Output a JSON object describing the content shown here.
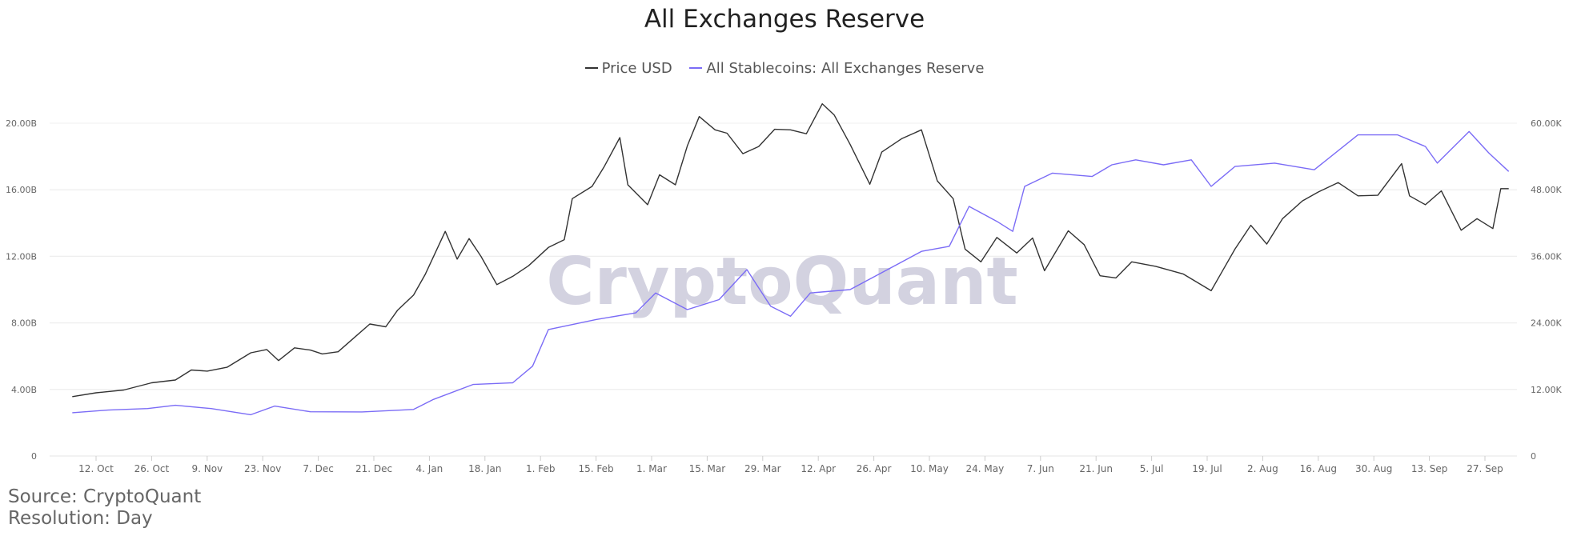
{
  "chart_data": {
    "type": "line",
    "title": "All Exchanges Reserve",
    "watermark": "CryptoQuant",
    "legend_placement": "top-center",
    "grid": true,
    "x_start": "2020-10-06",
    "x_end": "2021-10-03",
    "xticks": [
      "12. Oct",
      "26. Oct",
      "9. Nov",
      "23. Nov",
      "7. Dec",
      "21. Dec",
      "4. Jan",
      "18. Jan",
      "1. Feb",
      "15. Feb",
      "1. Mar",
      "15. Mar",
      "29. Mar",
      "12. Apr",
      "26. Apr",
      "10. May",
      "24. May",
      "7. Jun",
      "21. Jun",
      "5. Jul",
      "19. Jul",
      "2. Aug",
      "16. Aug",
      "30. Aug",
      "13. Sep",
      "27. Sep"
    ],
    "y_left": {
      "min": 0,
      "max": 20000000000,
      "ticks": [
        "0",
        "4.00B",
        "8.00B",
        "12.00B",
        "16.00B",
        "20.00B"
      ]
    },
    "y_right": {
      "min": 0,
      "max": 60000,
      "ticks": [
        "0",
        "12.00K",
        "24.00K",
        "36.00K",
        "48.00K",
        "60.00K"
      ]
    },
    "series": [
      {
        "name": "Price USD",
        "axis": "right",
        "color": "#333333",
        "points": [
          [
            "2020-10-06",
            10700
          ],
          [
            "2020-10-12",
            11400
          ],
          [
            "2020-10-19",
            11900
          ],
          [
            "2020-10-26",
            13200
          ],
          [
            "2020-11-01",
            13700
          ],
          [
            "2020-11-05",
            15500
          ],
          [
            "2020-11-09",
            15300
          ],
          [
            "2020-11-14",
            16000
          ],
          [
            "2020-11-20",
            18600
          ],
          [
            "2020-11-24",
            19200
          ],
          [
            "2020-11-27",
            17200
          ],
          [
            "2020-12-01",
            19500
          ],
          [
            "2020-12-05",
            19100
          ],
          [
            "2020-12-08",
            18400
          ],
          [
            "2020-12-12",
            18800
          ],
          [
            "2020-12-16",
            21300
          ],
          [
            "2020-12-20",
            23800
          ],
          [
            "2020-12-24",
            23300
          ],
          [
            "2020-12-27",
            26300
          ],
          [
            "2020-12-31",
            29000
          ],
          [
            "2021-01-03",
            32800
          ],
          [
            "2021-01-08",
            40500
          ],
          [
            "2021-01-11",
            35500
          ],
          [
            "2021-01-14",
            39200
          ],
          [
            "2021-01-17",
            36000
          ],
          [
            "2021-01-21",
            30900
          ],
          [
            "2021-01-25",
            32400
          ],
          [
            "2021-01-29",
            34300
          ],
          [
            "2021-02-03",
            37600
          ],
          [
            "2021-02-07",
            39000
          ],
          [
            "2021-02-09",
            46400
          ],
          [
            "2021-02-14",
            48600
          ],
          [
            "2021-02-17",
            52100
          ],
          [
            "2021-02-21",
            57400
          ],
          [
            "2021-02-23",
            48900
          ],
          [
            "2021-02-28",
            45300
          ],
          [
            "2021-03-03",
            50700
          ],
          [
            "2021-03-07",
            48900
          ],
          [
            "2021-03-10",
            55900
          ],
          [
            "2021-03-13",
            61200
          ],
          [
            "2021-03-17",
            58800
          ],
          [
            "2021-03-20",
            58200
          ],
          [
            "2021-03-24",
            54500
          ],
          [
            "2021-03-28",
            55800
          ],
          [
            "2021-04-01",
            58900
          ],
          [
            "2021-04-05",
            58800
          ],
          [
            "2021-04-09",
            58100
          ],
          [
            "2021-04-13",
            63500
          ],
          [
            "2021-04-16",
            61500
          ],
          [
            "2021-04-20",
            56200
          ],
          [
            "2021-04-25",
            49000
          ],
          [
            "2021-04-28",
            54800
          ],
          [
            "2021-05-03",
            57200
          ],
          [
            "2021-05-08",
            58800
          ],
          [
            "2021-05-12",
            49600
          ],
          [
            "2021-05-16",
            46400
          ],
          [
            "2021-05-19",
            37300
          ],
          [
            "2021-05-23",
            35000
          ],
          [
            "2021-05-27",
            39400
          ],
          [
            "2021-06-01",
            36600
          ],
          [
            "2021-06-05",
            39300
          ],
          [
            "2021-06-08",
            33400
          ],
          [
            "2021-06-14",
            40600
          ],
          [
            "2021-06-18",
            38100
          ],
          [
            "2021-06-22",
            32500
          ],
          [
            "2021-06-26",
            32100
          ],
          [
            "2021-06-30",
            35000
          ],
          [
            "2021-07-06",
            34200
          ],
          [
            "2021-07-13",
            32800
          ],
          [
            "2021-07-20",
            29800
          ],
          [
            "2021-07-26",
            37300
          ],
          [
            "2021-07-30",
            41600
          ],
          [
            "2021-08-03",
            38200
          ],
          [
            "2021-08-07",
            42800
          ],
          [
            "2021-08-12",
            46000
          ],
          [
            "2021-08-16",
            47600
          ],
          [
            "2021-08-21",
            49300
          ],
          [
            "2021-08-26",
            46900
          ],
          [
            "2021-08-31",
            47000
          ],
          [
            "2021-09-06",
            52700
          ],
          [
            "2021-09-08",
            46900
          ],
          [
            "2021-09-12",
            45300
          ],
          [
            "2021-09-16",
            47800
          ],
          [
            "2021-09-21",
            40700
          ],
          [
            "2021-09-25",
            42800
          ],
          [
            "2021-09-29",
            41000
          ],
          [
            "2021-10-01",
            48200
          ],
          [
            "2021-10-03",
            48200
          ]
        ]
      },
      {
        "name": "All Stablecoins: All Exchanges Reserve",
        "axis": "left",
        "color": "#7b6cf6",
        "points": [
          [
            "2020-10-06",
            2600000000
          ],
          [
            "2020-10-15",
            2760000000
          ],
          [
            "2020-10-25",
            2850000000
          ],
          [
            "2020-11-01",
            3050000000
          ],
          [
            "2020-11-10",
            2850000000
          ],
          [
            "2020-11-20",
            2480000000
          ],
          [
            "2020-11-26",
            3000000000
          ],
          [
            "2020-12-05",
            2660000000
          ],
          [
            "2020-12-18",
            2650000000
          ],
          [
            "2020-12-31",
            2800000000
          ],
          [
            "2021-01-05",
            3400000000
          ],
          [
            "2021-01-15",
            4300000000
          ],
          [
            "2021-01-25",
            4400000000
          ],
          [
            "2021-01-30",
            5400000000
          ],
          [
            "2021-02-03",
            7600000000
          ],
          [
            "2021-02-15",
            8200000000
          ],
          [
            "2021-02-25",
            8600000000
          ],
          [
            "2021-03-02",
            9800000000
          ],
          [
            "2021-03-10",
            8800000000
          ],
          [
            "2021-03-18",
            9400000000
          ],
          [
            "2021-03-25",
            11200000000
          ],
          [
            "2021-03-31",
            9000000000
          ],
          [
            "2021-04-05",
            8400000000
          ],
          [
            "2021-04-10",
            9800000000
          ],
          [
            "2021-04-20",
            10000000000
          ],
          [
            "2021-05-01",
            11400000000
          ],
          [
            "2021-05-08",
            12300000000
          ],
          [
            "2021-05-15",
            12600000000
          ],
          [
            "2021-05-20",
            15000000000
          ],
          [
            "2021-05-27",
            14100000000
          ],
          [
            "2021-05-31",
            13500000000
          ],
          [
            "2021-06-03",
            16200000000
          ],
          [
            "2021-06-10",
            17000000000
          ],
          [
            "2021-06-20",
            16800000000
          ],
          [
            "2021-06-25",
            17500000000
          ],
          [
            "2021-07-01",
            17800000000
          ],
          [
            "2021-07-08",
            17500000000
          ],
          [
            "2021-07-15",
            17800000000
          ],
          [
            "2021-07-20",
            16200000000
          ],
          [
            "2021-07-26",
            17400000000
          ],
          [
            "2021-08-05",
            17600000000
          ],
          [
            "2021-08-15",
            17200000000
          ],
          [
            "2021-08-26",
            19300000000
          ],
          [
            "2021-09-05",
            19300000000
          ],
          [
            "2021-09-12",
            18600000000
          ],
          [
            "2021-09-15",
            17600000000
          ],
          [
            "2021-09-23",
            19500000000
          ],
          [
            "2021-09-28",
            18200000000
          ],
          [
            "2021-10-03",
            17100000000
          ]
        ]
      }
    ]
  },
  "footer": {
    "source": "Source: CryptoQuant",
    "resolution": "Resolution: Day"
  }
}
